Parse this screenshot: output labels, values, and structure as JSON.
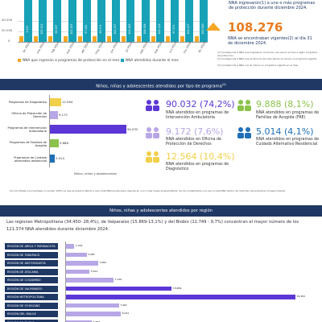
{
  "top_chart": {
    "y_ticks": [
      "40 000",
      "20 000",
      "0"
    ],
    "months": [
      "dic 2023",
      "ene 2024",
      "feb 2024",
      "mar 2024",
      "abr 2024",
      "may 2024",
      "jun 2024",
      "jul 2024",
      "ago 2024",
      "sep 2024",
      "oct 2024",
      "nov 2024",
      "dic 2024"
    ],
    "bar_values": [
      "3.417",
      "105.112",
      "96.197",
      "102.193",
      "97.024",
      "98.174",
      "104.437",
      "101.462",
      "106.198",
      "105.128",
      "97.174",
      "104.437",
      "100.000"
    ],
    "legend": [
      "NNA que ingresan a programas de protección en el mes",
      "NNA atendidos durante el mes"
    ],
    "colors": {
      "ingresan": "#f5a623",
      "atendidos": "#17a2b8"
    }
  },
  "right_top": {
    "ingresados_text": "NNA ingresaron(1) a uno o más programas de protección durante diciembre 2024.",
    "vigentes_number": "108.276",
    "vigentes_text": "NNA se encontraban vigentes(2) al día 31 de diciembre 2024.",
    "notes": [
      "(1) Corresponde a NNA que ingresaron al menos una vez en el mes a algún programa de protección.",
      "(2) Corresponde a NNA que al término del mes tenían al menos un programa vigente.",
      "(3) Corresponde a NNA con al menos un programa vigente en el mes."
    ]
  },
  "section_by_type": {
    "title": "Niños, niñas y adolescentes atendidos por tipo de programa",
    "sup": "(4)",
    "programs": [
      {
        "label": "Programas de Diagnóstico",
        "value": "12.564"
      },
      {
        "label": "Oficina de Protección de Derechos",
        "value": "9.172"
      },
      {
        "label": "Programas de Intervención Ambulatoria",
        "value": "90.032"
      },
      {
        "label": "Programas de Familias de Acogida",
        "value": "9.888"
      },
      {
        "label": "Programas de Cuidado alternativo residencial",
        "value": "5.014"
      }
    ],
    "axis_label": "Niños, niñas y adolescentes",
    "stats": [
      {
        "number": "90.032 (74,2%)",
        "desc": "NNA atendidos en programas de Intervención Ambulatoria",
        "color": "#5b37d6"
      },
      {
        "number": "9.172 (7,6%)",
        "desc": "NNA atendidos en Oficina de Protección de Derechos",
        "color": "#b7a7e6"
      },
      {
        "number": "12.564 (10,4%)",
        "desc": "NNA atendidos en programas de Diagnóstico",
        "color": "#f2cf4a"
      },
      {
        "number": "9.888 (8,1%)",
        "desc": "NNA atendidos en programas de Familias de Acogida (FAE)",
        "color": "#8bc34a"
      },
      {
        "number": "5.014 (4,1%)",
        "desc": "NNA atendidos en programas de Cuidado Alternativo Residencial",
        "color": "#1f6fb7"
      }
    ],
    "footnote": "(4) Los totales a porcentajes no suman 100% ya que se explica debido a que cada NNA puede estar vigente en uno o más líneas programáticas. Se ha contabilizado una vez a cada NNA dentro de cada tipo de programa correspondiente."
  },
  "section_by_region": {
    "title": "Niños, niñas y adolescentes atendidos por región",
    "intro": "Las regiones Metropolitana (34.450- 28,4%), de Valparaíso (15.869-13,1%) y del Biobío (11.749 - 9,7%) concentran el mayor número de los 121.374 NNA atendidos durante diciembre 2024.",
    "regions": [
      {
        "name": "REGIÓN DE ARICA Y PARINACOTA",
        "value": "1.249",
        "highlight": false
      },
      {
        "name": "REGIÓN DE TARAPACÁ",
        "value": "3.083",
        "highlight": false
      },
      {
        "name": "REGIÓN DE ANTOFAGASTA",
        "value": "4.861",
        "highlight": false
      },
      {
        "name": "REGIÓN DE ATACAMA",
        "value": "3.504",
        "highlight": false
      },
      {
        "name": "REGIÓN DE COQUIMBO",
        "value": "7.136",
        "highlight": false
      },
      {
        "name": "REGIÓN DE VALPARAÍSO",
        "value": "15.869",
        "highlight": true
      },
      {
        "name": "REGIÓN METROPOLITANA",
        "value": "34.450",
        "highlight": true
      },
      {
        "name": "REGIÓN DE O'HIGGINS",
        "value": "7.961",
        "highlight": false
      },
      {
        "name": "REGIÓN DEL MAULE",
        "value": "8.241",
        "highlight": false
      },
      {
        "name": "REGIÓN DE ÑUBLE",
        "value": "3.882",
        "highlight": false
      }
    ],
    "colors": {
      "normal": "#b7a7e6",
      "highlight": "#5b37d6"
    }
  }
}
